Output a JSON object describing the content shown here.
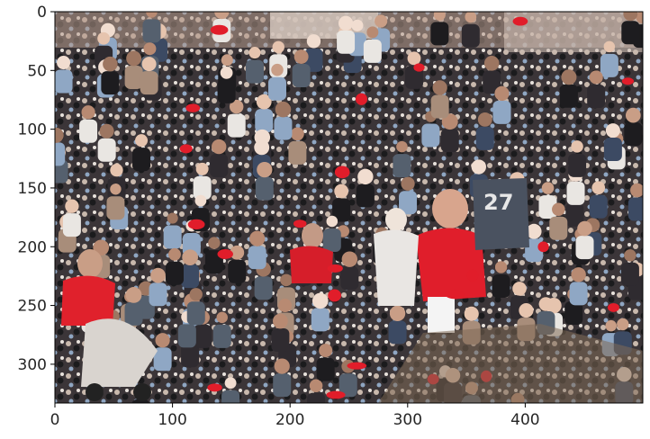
{
  "figure": {
    "image_description_kind": "photo",
    "x_axis": {
      "ticks": [
        0,
        100,
        200,
        300,
        400
      ],
      "range": [
        0,
        500
      ]
    },
    "y_axis": {
      "ticks": [
        0,
        50,
        100,
        150,
        200,
        250,
        300
      ],
      "range": [
        0,
        333
      ]
    },
    "jersey_text": "27"
  }
}
